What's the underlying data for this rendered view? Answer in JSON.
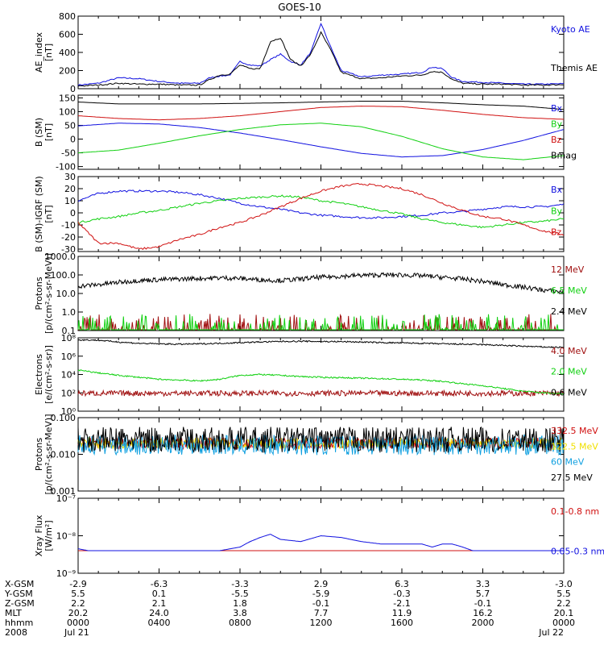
{
  "title": "GOES-10",
  "colors": {
    "blue": "#1010e0",
    "black": "#000000",
    "red": "#d01010",
    "green": "#10d010",
    "darkred": "#a01010",
    "yellow": "#f0e000",
    "cyan": "#10a0e0"
  },
  "x_axis": {
    "rows": [
      "X-GSM",
      "Y-GSM",
      "Z-GSM",
      "MLT",
      "hhmm",
      "2008"
    ],
    "columns": [
      [
        "-2.9",
        "5.5",
        "2.2",
        "20.2",
        "0000",
        "Jul 21"
      ],
      [
        "-6.3",
        "0.1",
        "2.1",
        "24.0",
        "0400",
        ""
      ],
      [
        "-3.3",
        "-5.5",
        "1.8",
        "3.8",
        "0800",
        ""
      ],
      [
        "2.9",
        "-5.9",
        "-0.1",
        "7.7",
        "1200",
        ""
      ],
      [
        "6.3",
        "-0.3",
        "-2.1",
        "11.9",
        "1600",
        ""
      ],
      [
        "3.3",
        "5.7",
        "-0.1",
        "16.2",
        "2000",
        ""
      ],
      [
        "-3.0",
        "5.5",
        "2.2",
        "20.1",
        "0000",
        "Jul 22"
      ]
    ]
  },
  "chart_data": [
    {
      "type": "line",
      "ylabel": [
        "AE_index",
        "[nT]"
      ],
      "ylim": [
        0,
        800
      ],
      "ticks": [
        [
          "800",
          800
        ],
        [
          "600",
          600
        ],
        [
          "400",
          400
        ],
        [
          "200",
          200
        ],
        [
          "0",
          0
        ]
      ],
      "series": [
        {
          "name": "Kyoto AE",
          "color": "#1010e0",
          "x": [
            0,
            1,
            2,
            3,
            4,
            5,
            6,
            6.5,
            7,
            7.5,
            8,
            8.5,
            9,
            9.5,
            10,
            10.5,
            11,
            11.5,
            12,
            12.5,
            13,
            14,
            15,
            16,
            17,
            17.5,
            18,
            18.5,
            19,
            20,
            21,
            22,
            23,
            24
          ],
          "y": [
            40,
            60,
            120,
            110,
            80,
            60,
            60,
            120,
            140,
            150,
            300,
            260,
            250,
            320,
            380,
            300,
            260,
            400,
            720,
            450,
            200,
            130,
            150,
            160,
            180,
            240,
            220,
            120,
            80,
            70,
            60,
            50,
            50,
            55
          ]
        },
        {
          "name": "Themis AE",
          "color": "#000000",
          "x": [
            0,
            1,
            2,
            3,
            4,
            5,
            6,
            6.5,
            7,
            7.5,
            8,
            8.5,
            9,
            9.5,
            10,
            10.5,
            11,
            11.5,
            12,
            12.5,
            13,
            14,
            15,
            16,
            17,
            17.5,
            18,
            18.5,
            19,
            20,
            21,
            22,
            23,
            24
          ],
          "y": [
            30,
            40,
            60,
            50,
            50,
            40,
            40,
            100,
            150,
            160,
            260,
            220,
            220,
            520,
            560,
            320,
            250,
            380,
            620,
            420,
            180,
            110,
            120,
            140,
            150,
            190,
            180,
            100,
            60,
            50,
            50,
            40,
            40,
            45
          ]
        }
      ]
    },
    {
      "type": "line",
      "ylabel": [
        "B (SM)",
        "[nT]"
      ],
      "ylim": [
        -110,
        160
      ],
      "ticks": [
        [
          "150",
          150
        ],
        [
          "100",
          100
        ],
        [
          "50",
          50
        ],
        [
          "0",
          0
        ],
        [
          "-50",
          -50
        ],
        [
          "-100",
          -100
        ]
      ],
      "series": [
        {
          "name": "Bx",
          "color": "#1010e0",
          "x": [
            0,
            2,
            4,
            6,
            8,
            10,
            12,
            14,
            16,
            18,
            20,
            22,
            24
          ],
          "y": [
            48,
            58,
            55,
            42,
            22,
            -2,
            -28,
            -52,
            -65,
            -60,
            -38,
            -5,
            35
          ]
        },
        {
          "name": "By",
          "color": "#10d010",
          "x": [
            0,
            2,
            4,
            6,
            8,
            10,
            12,
            14,
            16,
            18,
            20,
            22,
            24
          ],
          "y": [
            -50,
            -40,
            -15,
            12,
            35,
            52,
            58,
            45,
            10,
            -35,
            -65,
            -75,
            -60
          ]
        },
        {
          "name": "Bz",
          "color": "#d01010",
          "x": [
            0,
            2,
            4,
            6,
            8,
            10,
            12,
            14,
            16,
            18,
            20,
            22,
            24
          ],
          "y": [
            85,
            75,
            70,
            75,
            85,
            100,
            115,
            120,
            118,
            105,
            90,
            78,
            72
          ]
        },
        {
          "name": "Bmag",
          "color": "#000000",
          "x": [
            0,
            2,
            4,
            6,
            8,
            10,
            12,
            14,
            16,
            18,
            20,
            22,
            24
          ],
          "y": [
            135,
            128,
            128,
            128,
            130,
            132,
            135,
            138,
            138,
            132,
            125,
            120,
            108
          ]
        }
      ]
    },
    {
      "type": "line",
      "ylabel": [
        "B (SM)-IGRF (SM)",
        "[nT]"
      ],
      "ylim": [
        -32,
        30
      ],
      "ticks": [
        [
          "30",
          30
        ],
        [
          "20",
          20
        ],
        [
          "10",
          10
        ],
        [
          "0",
          0
        ],
        [
          "-10",
          -10
        ],
        [
          "-20",
          -20
        ],
        [
          "-30",
          -30
        ]
      ],
      "series": [
        {
          "name": "Bx",
          "color": "#1010e0",
          "x": [
            0,
            1,
            2,
            3,
            4,
            5,
            6,
            7,
            8,
            9,
            10,
            11,
            12,
            13,
            14,
            15,
            16,
            17,
            18,
            19,
            20,
            21,
            22,
            23,
            24
          ],
          "y": [
            10,
            16,
            18,
            18,
            18,
            17,
            15,
            12,
            8,
            5,
            3,
            0,
            -2,
            -3,
            -4,
            -4,
            -3,
            -2,
            0,
            1,
            3,
            5,
            5,
            5,
            7
          ]
        },
        {
          "name": "By",
          "color": "#10d010",
          "x": [
            0,
            1,
            2,
            3,
            4,
            5,
            6,
            7,
            8,
            9,
            10,
            11,
            12,
            13,
            14,
            15,
            16,
            17,
            18,
            19,
            20,
            21,
            22,
            23,
            24
          ],
          "y": [
            -8,
            -5,
            -3,
            0,
            2,
            5,
            8,
            10,
            12,
            13,
            14,
            13,
            10,
            8,
            5,
            2,
            -1,
            -5,
            -8,
            -10,
            -12,
            -10,
            -8,
            -7,
            -5
          ]
        },
        {
          "name": "Bz",
          "color": "#d01010",
          "x": [
            0,
            1,
            2,
            3,
            4,
            5,
            6,
            7,
            8,
            9,
            10,
            11,
            12,
            13,
            14,
            15,
            16,
            17,
            18,
            19,
            20,
            21,
            22,
            23,
            24
          ],
          "y": [
            -8,
            -25,
            -25,
            -30,
            -28,
            -22,
            -18,
            -12,
            -8,
            -2,
            5,
            12,
            18,
            22,
            24,
            22,
            20,
            15,
            8,
            2,
            -3,
            -5,
            -10,
            -15,
            -18
          ]
        }
      ]
    },
    {
      "type": "line",
      "ylabel": [
        "Protons",
        "[p/(cm²-s-sr-MeV)]"
      ],
      "ylim": [
        0.1,
        1000
      ],
      "log": true,
      "ticks": [
        [
          "1000.0",
          1000
        ],
        [
          "100.0",
          100
        ],
        [
          "10.0",
          10
        ],
        [
          "1.0",
          1
        ],
        [
          "0.1",
          0.1
        ]
      ],
      "series": [
        {
          "name": "12 MeV",
          "color": "#a01010",
          "x": [
            0,
            24
          ],
          "y": [
            0.1,
            0.1
          ]
        },
        {
          "name": "6.5 MeV",
          "color": "#10d010",
          "x": [
            0,
            24
          ],
          "y": [
            0.1,
            0.1
          ]
        },
        {
          "name": "2.4 MeV",
          "color": "#000000",
          "x": [
            0,
            1,
            2,
            3,
            4,
            5,
            6,
            7,
            8,
            9,
            10,
            11,
            12,
            13,
            14,
            15,
            16,
            17,
            18,
            19,
            20,
            21,
            22,
            23,
            24
          ],
          "y": [
            25,
            30,
            40,
            50,
            55,
            60,
            65,
            70,
            65,
            55,
            50,
            60,
            75,
            85,
            95,
            100,
            100,
            90,
            75,
            60,
            45,
            30,
            22,
            15,
            12
          ]
        }
      ]
    },
    {
      "type": "line",
      "ylabel": [
        "Electrons",
        "[e/(cm²-s-sr)]"
      ],
      "ylim": [
        1,
        100000000
      ],
      "log": true,
      "ticks": [
        [
          "10⁸",
          100000000
        ],
        [
          "10⁶",
          1000000
        ],
        [
          "10⁴",
          10000
        ],
        [
          "10²",
          100
        ],
        [
          "10⁰",
          1
        ]
      ],
      "series": [
        {
          "name": "4.0 MeV",
          "color": "#a01010",
          "x": [
            0,
            24
          ],
          "y": [
            90,
            90
          ]
        },
        {
          "name": "2.0 MeV",
          "color": "#10d010",
          "x": [
            0,
            1,
            2,
            3,
            4,
            5,
            6,
            7,
            8,
            9,
            10,
            11,
            12,
            13,
            14,
            15,
            16,
            17,
            18,
            19,
            20,
            21,
            22,
            23,
            24
          ],
          "y": [
            30000,
            15000,
            8000,
            5000,
            3000,
            2500,
            2000,
            3000,
            8000,
            10000,
            8000,
            6000,
            5000,
            4500,
            4000,
            3500,
            3000,
            2500,
            1800,
            1000,
            600,
            300,
            150,
            100,
            80
          ]
        },
        {
          "name": "0.6 MeV",
          "color": "#000000",
          "x": [
            0,
            1,
            2,
            3,
            4,
            5,
            6,
            7,
            8,
            9,
            10,
            11,
            12,
            13,
            14,
            15,
            16,
            17,
            18,
            19,
            20,
            21,
            22,
            23,
            24
          ],
          "y": [
            60000000,
            55000000,
            35000000,
            25000000,
            22000000,
            20000000,
            22000000,
            25000000,
            30000000,
            35000000,
            40000000,
            42000000,
            40000000,
            38000000,
            35000000,
            30000000,
            28000000,
            25000000,
            22000000,
            20000000,
            18000000,
            15000000,
            12000000,
            10000000,
            9000000
          ]
        }
      ]
    },
    {
      "type": "line",
      "ylabel": [
        "Protons",
        "[p/(cm²-s-sr-MeV)]"
      ],
      "ylim": [
        0.001,
        0.1
      ],
      "log": true,
      "ticks": [
        [
          "0.100",
          0.1
        ],
        [
          "0.010",
          0.01
        ],
        [
          "0.001",
          0.001
        ]
      ],
      "series": [
        {
          "name": "332.5 MeV",
          "color": "#d01010",
          "x": [
            0,
            24
          ],
          "y": [
            0.02,
            0.02
          ]
        },
        {
          "name": "122.5 MeV",
          "color": "#f0e000",
          "x": [
            0,
            24
          ],
          "y": [
            0.02,
            0.02
          ]
        },
        {
          "name": "60 MeV",
          "color": "#10a0e0",
          "x": [
            0,
            24
          ],
          "y": [
            0.018,
            0.018
          ]
        },
        {
          "name": "27.5 MeV",
          "color": "#000000",
          "x": [
            0,
            24
          ],
          "y": [
            0.025,
            0.025
          ]
        }
      ]
    },
    {
      "type": "line",
      "ylabel": [
        "Xray Flux",
        "[W/m²]"
      ],
      "ylim": [
        1e-09,
        1e-07
      ],
      "log": true,
      "ticks": [
        [
          "10⁻⁷",
          1e-07
        ],
        [
          "10⁻⁸",
          1e-08
        ],
        [
          "10⁻⁹",
          1e-09
        ]
      ],
      "series": [
        {
          "name": "0.1-0.8 nm",
          "color": "#d01010",
          "x": [
            0,
            24
          ],
          "y": [
            4e-09,
            4e-09
          ]
        },
        {
          "name": "0.05-0.3 nm",
          "color": "#1010e0",
          "x": [
            0,
            0.5,
            1,
            6,
            7,
            8,
            8.5,
            9,
            9.5,
            10,
            11,
            12,
            13,
            14,
            15,
            16,
            17,
            17.5,
            18,
            18.5,
            19,
            19.5,
            20,
            24
          ],
          "y": [
            4.5e-09,
            4e-09,
            4e-09,
            4e-09,
            4e-09,
            5e-09,
            7e-09,
            9e-09,
            1.1e-08,
            8e-09,
            7e-09,
            1e-08,
            9e-09,
            7e-09,
            6e-09,
            6e-09,
            6e-09,
            5e-09,
            6e-09,
            6e-09,
            5e-09,
            4e-09,
            4e-09,
            4e-09
          ]
        }
      ]
    }
  ]
}
